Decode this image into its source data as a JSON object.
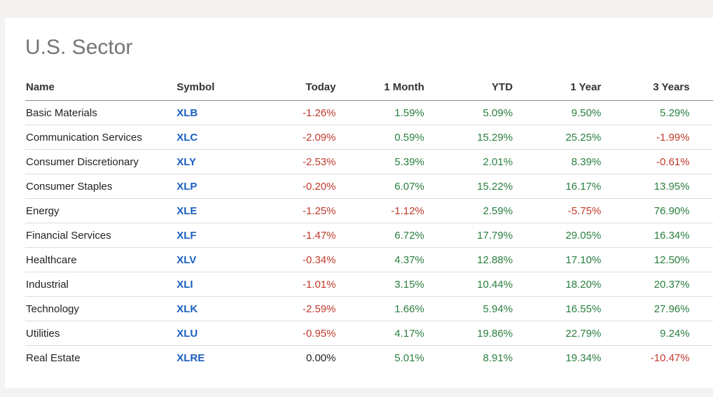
{
  "panel": {
    "title": "U.S. Sector"
  },
  "table": {
    "headers": [
      "Name",
      "Symbol",
      "Today",
      "1 Month",
      "YTD",
      "1 Year",
      "3 Years"
    ],
    "rows": [
      {
        "name": "Basic Materials",
        "symbol": "XLB",
        "values": [
          "-1.26%",
          "1.59%",
          "5.09%",
          "9.50%",
          "5.29%"
        ]
      },
      {
        "name": "Communication Services",
        "symbol": "XLC",
        "values": [
          "-2.09%",
          "0.59%",
          "15.29%",
          "25.25%",
          "-1.99%"
        ]
      },
      {
        "name": "Consumer Discretionary",
        "symbol": "XLY",
        "values": [
          "-2.53%",
          "5.39%",
          "2.01%",
          "8.39%",
          "-0.61%"
        ]
      },
      {
        "name": "Consumer Staples",
        "symbol": "XLP",
        "values": [
          "-0.20%",
          "6.07%",
          "15.22%",
          "16.17%",
          "13.95%"
        ]
      },
      {
        "name": "Energy",
        "symbol": "XLE",
        "values": [
          "-1.25%",
          "-1.12%",
          "2.59%",
          "-5.75%",
          "76.90%"
        ]
      },
      {
        "name": "Financial Services",
        "symbol": "XLF",
        "values": [
          "-1.47%",
          "6.72%",
          "17.79%",
          "29.05%",
          "16.34%"
        ]
      },
      {
        "name": "Healthcare",
        "symbol": "XLV",
        "values": [
          "-0.34%",
          "4.37%",
          "12.88%",
          "17.10%",
          "12.50%"
        ]
      },
      {
        "name": "Industrial",
        "symbol": "XLI",
        "values": [
          "-1.01%",
          "3.15%",
          "10.44%",
          "18.20%",
          "20.37%"
        ]
      },
      {
        "name": "Technology",
        "symbol": "XLK",
        "values": [
          "-2.59%",
          "1.66%",
          "5.94%",
          "16.55%",
          "27.96%"
        ]
      },
      {
        "name": "Utilities",
        "symbol": "XLU",
        "values": [
          "-0.95%",
          "4.17%",
          "19.86%",
          "22.79%",
          "9.24%"
        ]
      },
      {
        "name": "Real Estate",
        "symbol": "XLRE",
        "values": [
          "0.00%",
          "5.01%",
          "8.91%",
          "19.34%",
          "-10.47%"
        ]
      }
    ]
  },
  "colors": {
    "positive": "#2a7f3f",
    "negative": "#c0392b",
    "neutral": "#222222",
    "symbol_link": "#1a5fbf",
    "title": "#757575"
  }
}
